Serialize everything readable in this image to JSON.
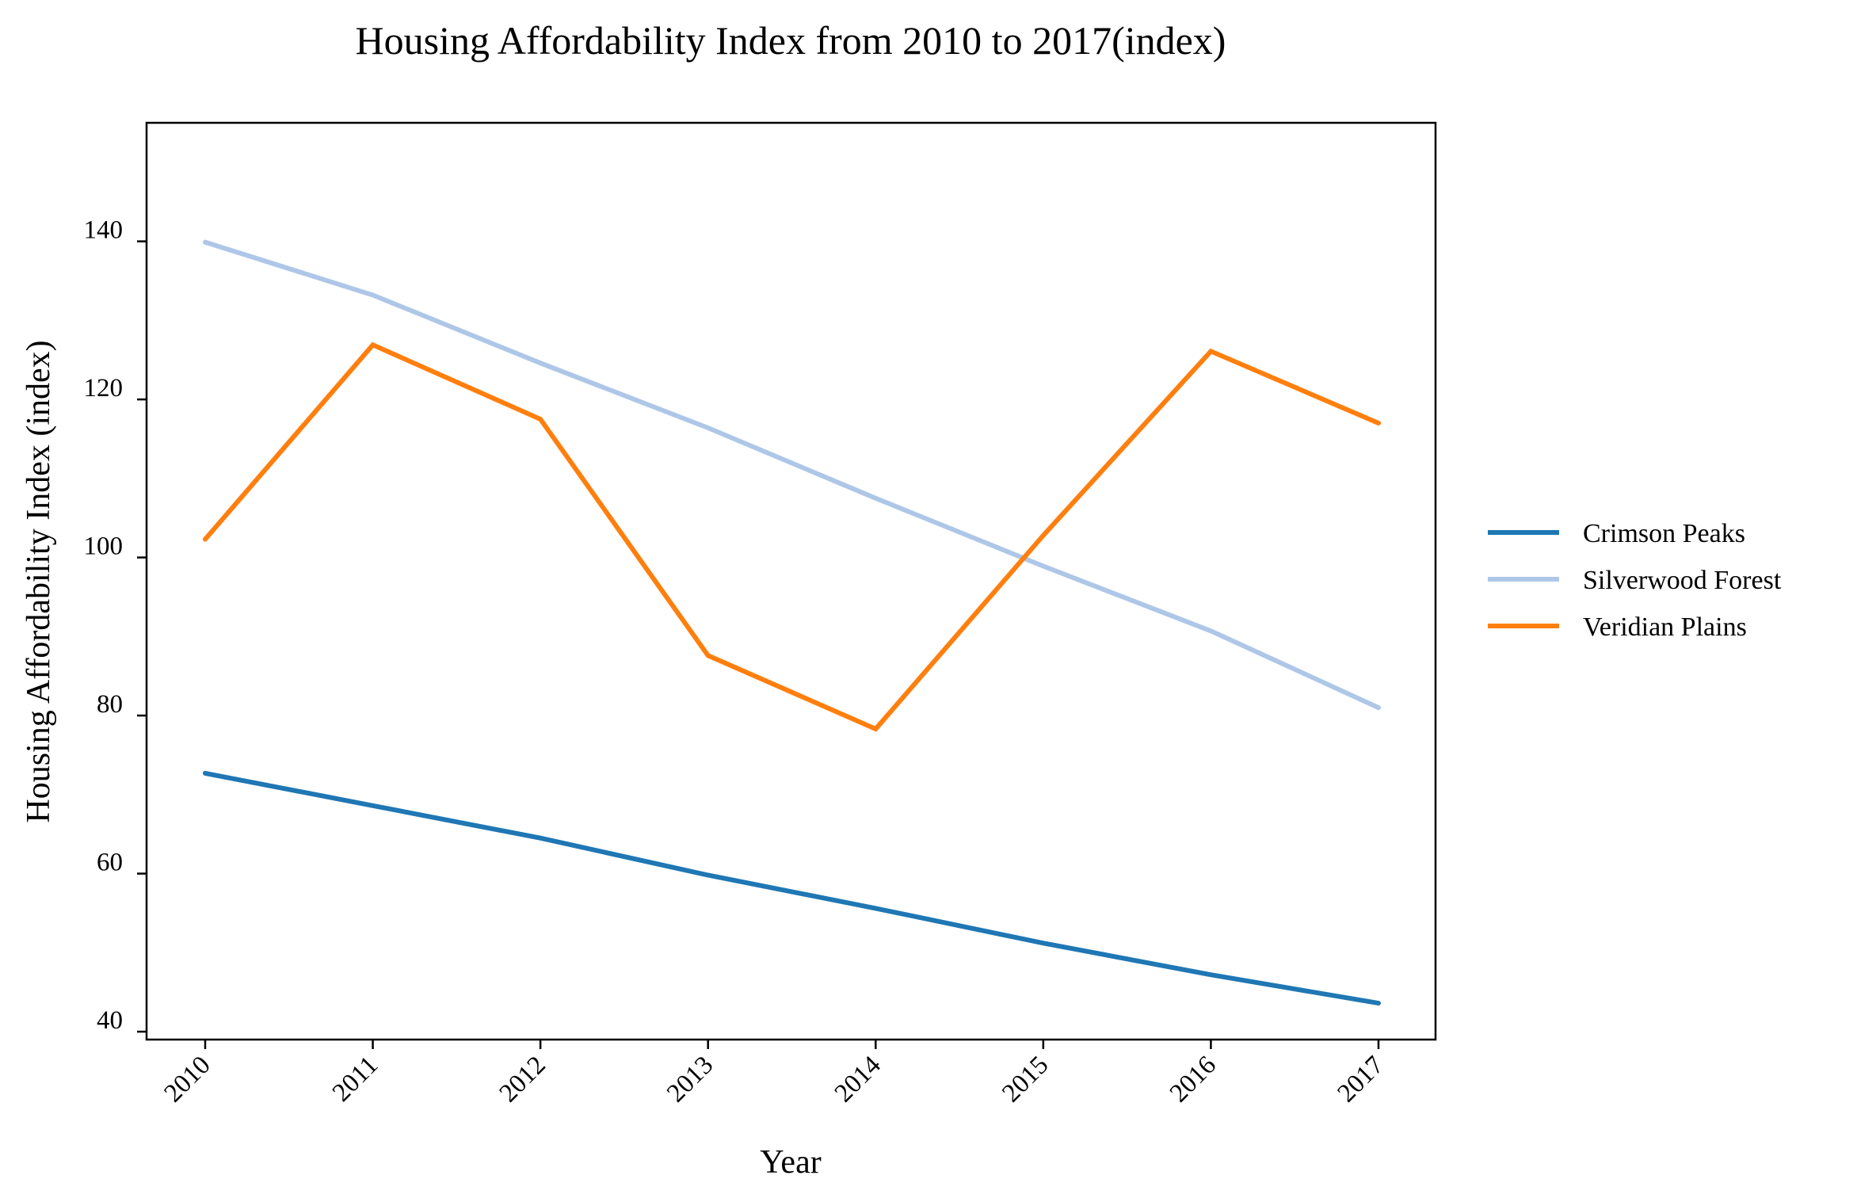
{
  "chart_data": {
    "type": "line",
    "title": "Housing Affordability Index from 2010 to 2017(index)",
    "xlabel": "Year",
    "ylabel": "Housing Affordability Index (index)",
    "categories": [
      "2010",
      "2011",
      "2012",
      "2013",
      "2014",
      "2015",
      "2016",
      "2017"
    ],
    "yticks": [
      40,
      60,
      80,
      100,
      120,
      140
    ],
    "ylim": [
      39,
      155
    ],
    "grid": false,
    "legend_position": "right",
    "series": [
      {
        "name": "Crimson Peaks",
        "color": "#1f77b4",
        "values": [
          72.7,
          68.6,
          64.5,
          59.8,
          55.6,
          51.2,
          47.2,
          43.6
        ]
      },
      {
        "name": "Silverwood Forest",
        "color": "#aec7e8",
        "values": [
          139.9,
          133.2,
          124.6,
          116.4,
          107.5,
          98.9,
          90.7,
          81.0
        ]
      },
      {
        "name": "Veridian Plains",
        "color": "#ff7f0e",
        "values": [
          102.3,
          126.9,
          117.5,
          87.6,
          78.3,
          102.8,
          126.1,
          117.0
        ]
      }
    ]
  }
}
